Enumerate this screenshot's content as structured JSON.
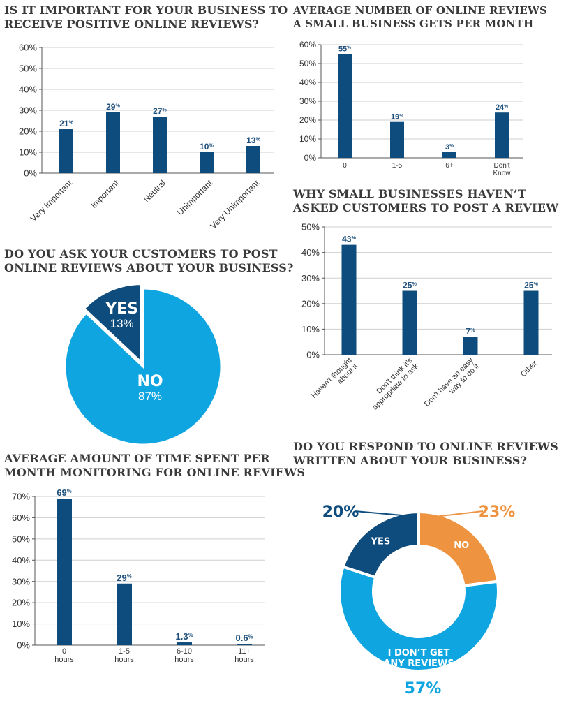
{
  "colors": {
    "navy": "#0e4c7d",
    "sky": "#0ea5e0",
    "orange": "#ee9440",
    "axis": "#555555",
    "grid": "#cfcfcf",
    "title": "#3a3a3a"
  },
  "titles": {
    "importance": [
      "IS IT IMPORTANT FOR YOUR BUSINESS TO",
      "RECEIVE POSITIVE ONLINE REVIEWS?"
    ],
    "avg_reviews": [
      "AVERAGE NUMBER OF ONLINE REVIEWS",
      "A SMALL BUSINESS GETS PER MONTH"
    ],
    "why_not": [
      "WHY SMALL BUSINESSES HAVEN’T",
      "ASKED CUSTOMERS TO POST A REVIEW"
    ],
    "ask": [
      "DO YOU ASK YOUR CUSTOMERS TO POST",
      "ONLINE REVIEWS ABOUT YOUR BUSINESS?"
    ],
    "time": [
      "AVERAGE AMOUNT OF TIME SPENT PER",
      "MONTH MONITORING FOR ONLINE REVIEWS"
    ],
    "respond": [
      "DO YOU RESPOND TO ONLINE REVIEWS",
      "WRITTEN ABOUT YOUR BUSINESS?"
    ]
  },
  "chart_data": [
    {
      "id": "importance",
      "type": "bar",
      "title": "IS IT IMPORTANT FOR YOUR BUSINESS TO RECEIVE POSITIVE ONLINE REVIEWS?",
      "categories": [
        "Very Important",
        "Important",
        "Neutral",
        "Unimportant",
        "Very Unimportant"
      ],
      "values": [
        21,
        29,
        27,
        10,
        13
      ],
      "data_labels": [
        "21",
        "29",
        "27",
        "10",
        "13"
      ],
      "ylim": [
        0,
        60
      ],
      "yticks": [
        "0%",
        "10%",
        "20%",
        "30%",
        "40%",
        "50%",
        "60%"
      ],
      "unit": "%",
      "grid": true,
      "xlabel_rotation": "diagonal"
    },
    {
      "id": "avg_reviews",
      "type": "bar",
      "title": "AVERAGE NUMBER OF ONLINE REVIEWS A SMALL BUSINESS GETS PER MONTH",
      "categories": [
        [
          "0"
        ],
        [
          "1-5"
        ],
        [
          "6+"
        ],
        [
          "Don't",
          "Know"
        ]
      ],
      "values": [
        55,
        19,
        3,
        24
      ],
      "data_labels": [
        "55",
        "19",
        "3",
        "24"
      ],
      "ylim": [
        0,
        60
      ],
      "yticks": [
        "0%",
        "10%",
        "20%",
        "30%",
        "40%",
        "50%",
        "60%"
      ],
      "unit": "%",
      "grid": true
    },
    {
      "id": "why_not",
      "type": "bar",
      "title": "WHY SMALL BUSINESSES HAVEN’T ASKED CUSTOMERS TO POST A REVIEW",
      "categories": [
        [
          "Haven't thought",
          "about it"
        ],
        [
          "Don't think it's",
          "appropriate to ask"
        ],
        [
          "Don't have an easy",
          "way to do it"
        ],
        [
          "Other"
        ]
      ],
      "values": [
        43,
        25,
        7,
        25
      ],
      "data_labels": [
        "43",
        "25",
        "7",
        "25"
      ],
      "ylim": [
        0,
        50
      ],
      "yticks": [
        "0%",
        "10%",
        "20%",
        "30%",
        "40%",
        "50%"
      ],
      "unit": "%",
      "grid": true,
      "xlabel_rotation": "diagonal"
    },
    {
      "id": "ask",
      "type": "pie",
      "title": "DO YOU ASK YOUR CUSTOMERS TO POST ONLINE REVIEWS ABOUT YOUR BUSINESS?",
      "slices": [
        {
          "label": "YES",
          "value": 13,
          "display": "13%",
          "color": "#0e4c7d",
          "exploded": true
        },
        {
          "label": "NO",
          "value": 87,
          "display": "87%",
          "color": "#0ea5e0"
        }
      ]
    },
    {
      "id": "time",
      "type": "bar",
      "title": "AVERAGE AMOUNT OF TIME SPENT PER MONTH MONITORING FOR ONLINE REVIEWS",
      "categories": [
        [
          "0",
          "hours"
        ],
        [
          "1-5",
          "hours"
        ],
        [
          "6-10",
          "hours"
        ],
        [
          "11+",
          "hours"
        ]
      ],
      "values": [
        69,
        29,
        1.3,
        0.6
      ],
      "data_labels": [
        "69",
        "29",
        "1.3",
        "0.6"
      ],
      "ylim": [
        0,
        70
      ],
      "yticks": [
        "0%",
        "10%",
        "20%",
        "30%",
        "40%",
        "50%",
        "60%",
        "70%"
      ],
      "unit": "%",
      "grid": true
    },
    {
      "id": "respond",
      "type": "pie",
      "variant": "donut",
      "title": "DO YOU RESPOND TO ONLINE REVIEWS WRITTEN ABOUT YOUR BUSINESS?",
      "slices": [
        {
          "label": "NO",
          "value": 23,
          "display": "23%",
          "color": "#ee9440"
        },
        {
          "label": "I DON’T GET ANY REVIEWS",
          "value": 57,
          "display": "57%",
          "color": "#0ea5e0"
        },
        {
          "label": "YES",
          "value": 20,
          "display": "20%",
          "color": "#0e4c7d"
        }
      ]
    }
  ]
}
